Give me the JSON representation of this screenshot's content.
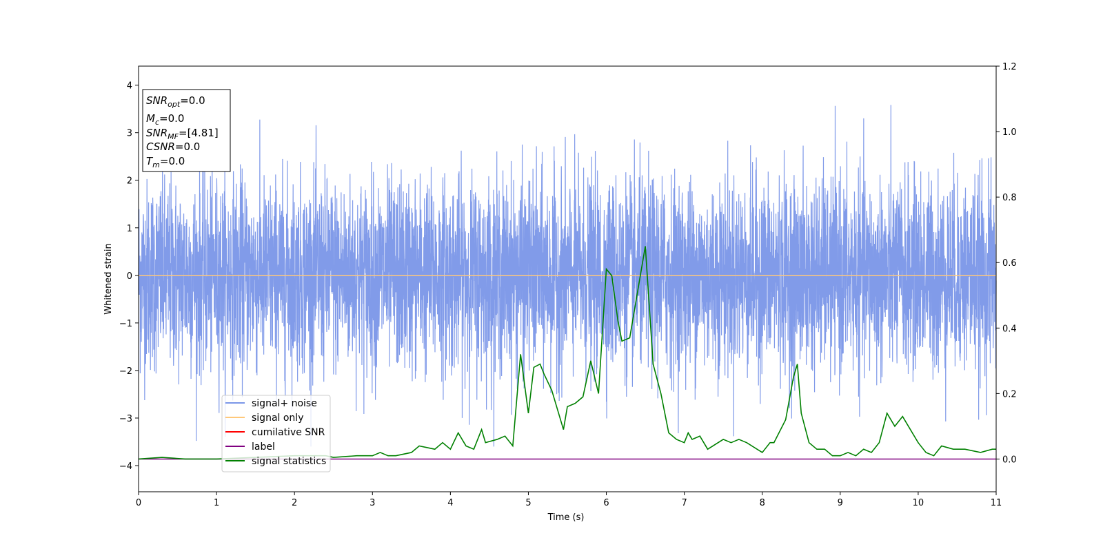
{
  "chart_data": {
    "type": "line",
    "xlabel": "Time (s)",
    "ylabel": "Whitened strain",
    "xlim": [
      0,
      11
    ],
    "ylim_left": [
      -4.55,
      4.4
    ],
    "ylim_right": [
      -0.1,
      1.2
    ],
    "x_ticks": [
      "0",
      "1",
      "2",
      "3",
      "4",
      "5",
      "6",
      "7",
      "8",
      "9",
      "10",
      "11"
    ],
    "y_left_ticks": [
      "4",
      "3",
      "2",
      "1",
      "0",
      "−1",
      "−2",
      "−3",
      "−4"
    ],
    "y_right_ticks": [
      "1.2",
      "1.0",
      "0.8",
      "0.6",
      "0.4",
      "0.2",
      "0.0"
    ],
    "grid": false,
    "legend_position": "lower-left",
    "legend": [
      {
        "label": "signal+ noise",
        "color": "#7a96e8"
      },
      {
        "label": "signal only",
        "color": "#ffc87a"
      },
      {
        "label": "cumilative SNR",
        "color": "#ff0000"
      },
      {
        "label": "label",
        "color": "#800080"
      },
      {
        "label": "signal statistics",
        "color": "#008000"
      }
    ],
    "info_box": {
      "snr_opt": {
        "sym": "SNR",
        "sub": "opt",
        "val": "=0.0"
      },
      "mc": {
        "sym": "M",
        "sub": "c",
        "val": "=0.0"
      },
      "snr_mf": {
        "sym": "SNR",
        "sub": "MF",
        "val": "=[4.81]"
      },
      "csnr": {
        "sym": "CSNR",
        "val": "=0.0"
      },
      "tm": {
        "sym": "T",
        "sub": "m",
        "val": "=0.0"
      }
    },
    "series": [
      {
        "name": "signal+ noise",
        "axis": "left",
        "description_range": [
          -3.6,
          3.95
        ],
        "color": "#7a96e8"
      },
      {
        "name": "signal only",
        "axis": "left",
        "x": [
          0,
          11
        ],
        "y": [
          0,
          0
        ],
        "color": "#ffc87a"
      },
      {
        "name": "label",
        "axis": "right",
        "x": [
          0,
          11
        ],
        "y": [
          0,
          0
        ],
        "color": "#800080"
      },
      {
        "name": "signal statistics",
        "axis": "right",
        "color": "#008000",
        "x": [
          0,
          0.3,
          0.6,
          1.0,
          1.5,
          2.0,
          2.4,
          2.5,
          2.8,
          3.0,
          3.1,
          3.2,
          3.3,
          3.5,
          3.6,
          3.8,
          3.9,
          4.0,
          4.1,
          4.2,
          4.3,
          4.4,
          4.45,
          4.6,
          4.7,
          4.8,
          4.9,
          5.0,
          5.07,
          5.15,
          5.2,
          5.3,
          5.45,
          5.5,
          5.6,
          5.7,
          5.8,
          5.9,
          6.0,
          6.07,
          6.15,
          6.2,
          6.3,
          6.4,
          6.5,
          6.6,
          6.7,
          6.8,
          6.9,
          7.0,
          7.05,
          7.1,
          7.2,
          7.3,
          7.5,
          7.6,
          7.7,
          7.8,
          8.0,
          8.1,
          8.15,
          8.3,
          8.4,
          8.45,
          8.5,
          8.6,
          8.7,
          8.8,
          8.9,
          9.0,
          9.1,
          9.2,
          9.3,
          9.4,
          9.5,
          9.6,
          9.7,
          9.8,
          9.9,
          10.0,
          10.1,
          10.2,
          10.3,
          10.45,
          10.6,
          10.8,
          10.95,
          11.0
        ],
        "y": [
          0.0,
          0.005,
          0.0,
          0.0,
          0.005,
          0.01,
          0.01,
          0.005,
          0.01,
          0.01,
          0.02,
          0.01,
          0.01,
          0.02,
          0.04,
          0.03,
          0.05,
          0.03,
          0.08,
          0.04,
          0.03,
          0.09,
          0.05,
          0.06,
          0.07,
          0.04,
          0.32,
          0.14,
          0.28,
          0.29,
          0.26,
          0.21,
          0.09,
          0.16,
          0.17,
          0.19,
          0.3,
          0.2,
          0.58,
          0.56,
          0.42,
          0.36,
          0.37,
          0.51,
          0.65,
          0.29,
          0.2,
          0.08,
          0.06,
          0.05,
          0.08,
          0.06,
          0.07,
          0.03,
          0.06,
          0.05,
          0.06,
          0.05,
          0.02,
          0.05,
          0.05,
          0.12,
          0.25,
          0.29,
          0.14,
          0.05,
          0.03,
          0.03,
          0.01,
          0.01,
          0.02,
          0.01,
          0.03,
          0.02,
          0.05,
          0.14,
          0.1,
          0.13,
          0.09,
          0.05,
          0.02,
          0.01,
          0.04,
          0.03,
          0.03,
          0.02,
          0.03,
          0.03
        ]
      }
    ]
  }
}
